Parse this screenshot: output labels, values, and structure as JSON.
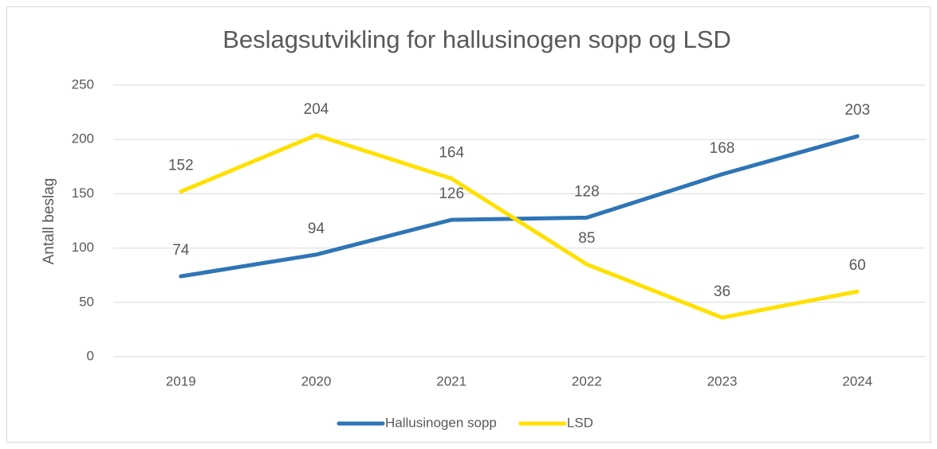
{
  "chart_data": {
    "type": "line",
    "title": "Beslagsutvikling for hallusinogen sopp og LSD",
    "y_label": "Antall beslag",
    "categories": [
      "2019",
      "2020",
      "2021",
      "2022",
      "2023",
      "2024"
    ],
    "series": [
      {
        "name": "Hallusinogen sopp",
        "color": "#2e75b6",
        "values": [
          74,
          94,
          126,
          128,
          168,
          203
        ]
      },
      {
        "name": "LSD",
        "color": "#ffe000",
        "values": [
          152,
          204,
          164,
          85,
          36,
          60
        ]
      }
    ],
    "ylim": [
      0,
      250
    ],
    "yticks": [
      0,
      50,
      100,
      150,
      200,
      250
    ],
    "grid": true,
    "legend": "bottom"
  }
}
